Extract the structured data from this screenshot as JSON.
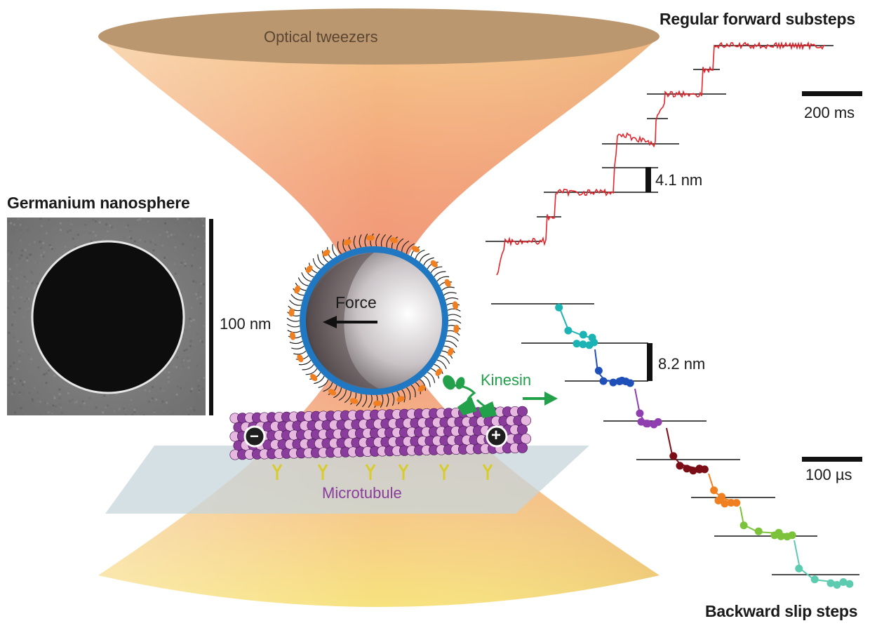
{
  "labels": {
    "optical_tweezers": "Optical tweezers",
    "germanium_nanosphere": "Germanium nanosphere",
    "scale_100nm": "100 nm",
    "force": "Force",
    "kinesin": "Kinesin",
    "microtubule": "Microtubule",
    "minus_end": "−",
    "plus_end": "+",
    "regular_forward_substeps": "Regular forward substeps",
    "backward_slip_steps": "Backward slip steps",
    "step_4_1nm": "4.1 nm",
    "step_8_2nm": "8.2 nm",
    "time_200ms": "200 ms",
    "time_100us": "100 µs"
  },
  "colors": {
    "forward_trace": "#e8232a",
    "sphere_shell": "#1f78c1",
    "kinesin": "#22a04a",
    "microtubule_label": "#8a3d9c",
    "slip_segments": [
      "#1bb3b3",
      "#1f4fb8",
      "#8f3fb0",
      "#7a0d16",
      "#f07f22",
      "#7cc23a",
      "#5ccbb0"
    ]
  },
  "forward_trace": {
    "step_levels": 10,
    "note_visible": false
  },
  "backward_trace": {
    "segments": 7
  }
}
